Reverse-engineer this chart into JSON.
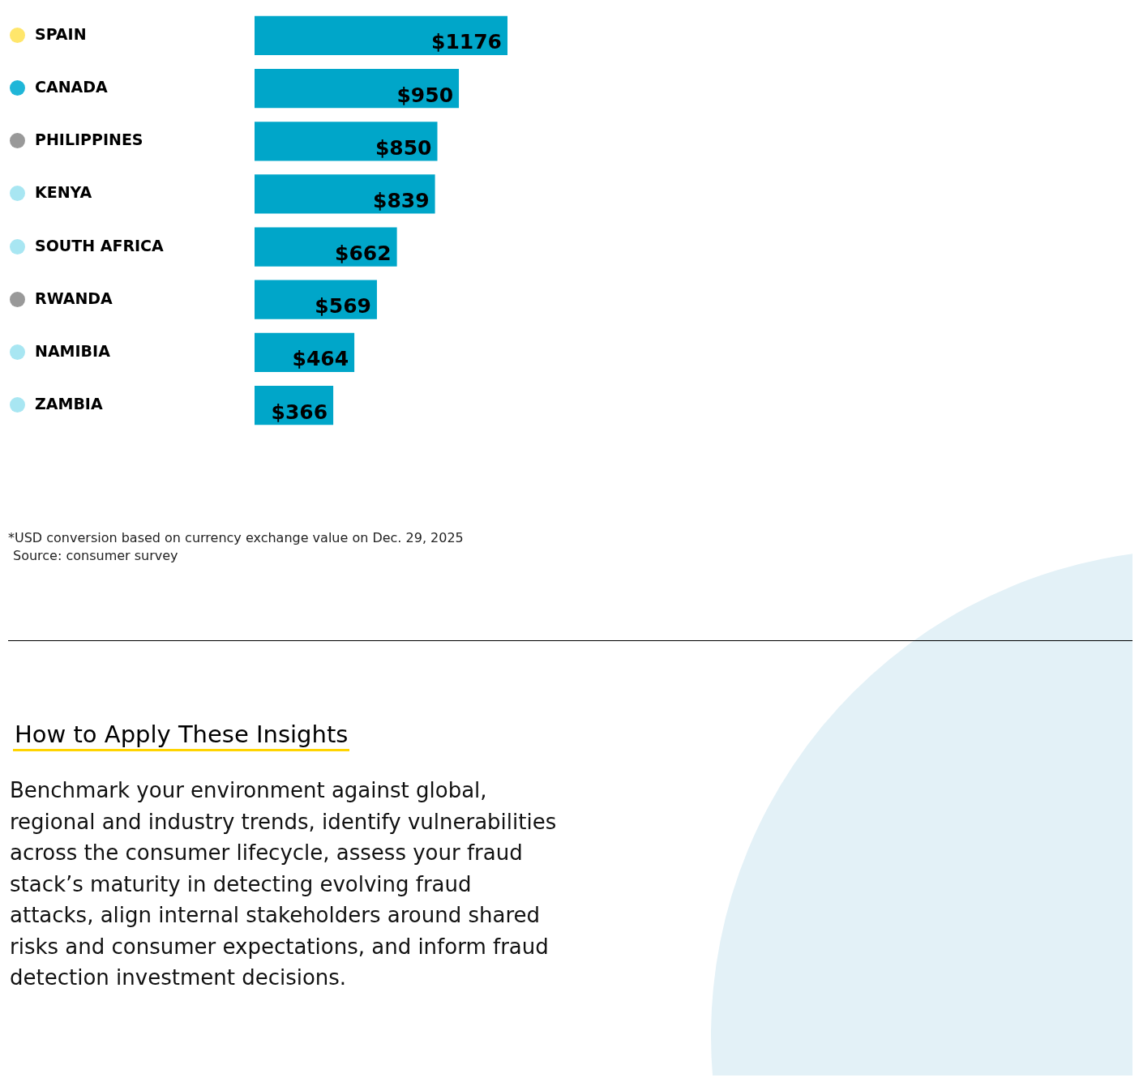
{
  "chart_data": {
    "type": "bar",
    "orientation": "horizontal",
    "categories": [
      "SPAIN",
      "CANADA",
      "PHILIPPINES",
      "KENYA",
      "SOUTH AFRICA",
      "RWANDA",
      "NAMIBIA",
      "ZAMBIA"
    ],
    "values": [
      1176,
      950,
      850,
      839,
      662,
      569,
      464,
      366
    ],
    "value_labels": [
      "$1176",
      "$950",
      "$850",
      "$839",
      "$662",
      "$569",
      "$464",
      "$366"
    ],
    "color": "#00a6c9",
    "legend": false,
    "annotations": [
      "*USD conversion based on currency exchange value on Dec. 29, 2025",
      "Source: consumer survey",
      "How to Apply These Insights",
      "Benchmark your environment against global, regional and industry trends, identify vulnerabilities across the consumer lifecycle, assess your fraud stack’s maturity in detecting evolving fraud attacks, align internal stakeholders around shared risks and consumer expectations, and inform fraud detection investment decisions."
    ]
  }
}
